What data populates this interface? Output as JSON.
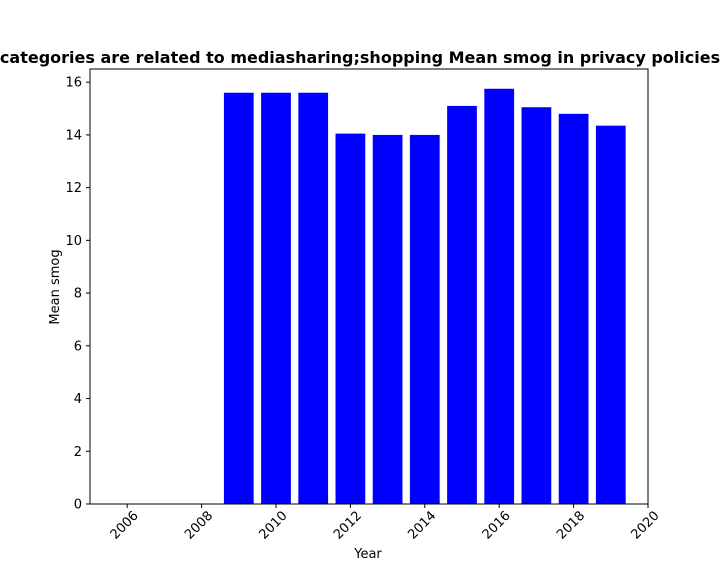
{
  "chart_data": {
    "type": "bar",
    "title": "categories are related to mediasharing;shopping Mean smog in privacy policies",
    "xlabel": "Year",
    "ylabel": "Mean smog",
    "x": [
      2009,
      2010,
      2011,
      2012,
      2013,
      2014,
      2015,
      2016,
      2017,
      2018,
      2019
    ],
    "values": [
      15.6,
      15.6,
      15.6,
      14.05,
      14.0,
      14.0,
      15.1,
      15.75,
      15.05,
      14.8,
      14.35
    ],
    "xlim": [
      2005,
      2020
    ],
    "ylim": [
      0,
      16.5
    ],
    "xticks": [
      "2006",
      "2008",
      "2010",
      "2012",
      "2014",
      "2016",
      "2018",
      "2020"
    ],
    "yticks": [
      "0",
      "2",
      "4",
      "6",
      "8",
      "10",
      "12",
      "14",
      "16"
    ],
    "bar_color": "#0000ff",
    "grid": false,
    "legend": "none"
  }
}
